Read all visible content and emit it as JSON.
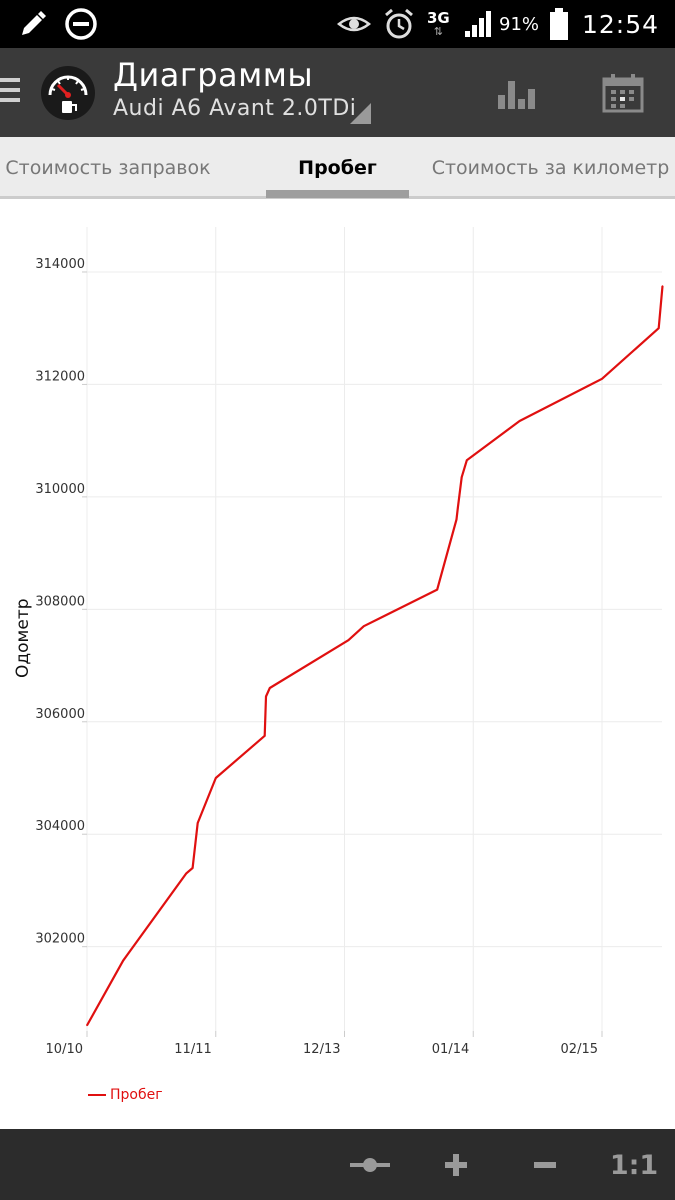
{
  "status_bar": {
    "battery": "91%",
    "time": "12:54",
    "network": "3G",
    "icons": [
      "pencil-icon",
      "do-not-disturb-icon",
      "eye-icon",
      "alarm-icon",
      "network-3g-icon",
      "signal-icon",
      "battery-icon"
    ]
  },
  "app_bar": {
    "title": "Диаграммы",
    "subtitle": "Audi A6 Avant 2.0TDi",
    "actions": [
      "bar-chart-icon",
      "calendar-icon"
    ]
  },
  "tabs": [
    {
      "label": "Стоимость заправок",
      "active": false
    },
    {
      "label": "Пробег",
      "active": true
    },
    {
      "label": "Стоимость за километр",
      "active": false
    }
  ],
  "bottom_bar": {
    "zoom_reset_label": "1:1",
    "icons": [
      "pan-slider-icon",
      "zoom-in-icon",
      "zoom-out-icon"
    ]
  },
  "chart_data": {
    "type": "line",
    "ylabel": "Одометр",
    "xlabel": "",
    "x_tick_labels": [
      "10/10",
      "11/11",
      "12/13",
      "01/14",
      "02/15"
    ],
    "y_tick_labels": [
      "302000",
      "304000",
      "306000",
      "308000",
      "310000",
      "312000",
      "314000"
    ],
    "ylim": [
      300500,
      314800
    ],
    "grid": true,
    "legend": "bottom-left",
    "colors": {
      "series": "#e01010",
      "grid": "#ececec",
      "axis_text": "#333333"
    },
    "series": [
      {
        "name": "Пробег",
        "x_tick_index": [
          0.0,
          0.28,
          0.77,
          0.82,
          0.86,
          1.0,
          1.38,
          1.39,
          1.42,
          2.03,
          2.15,
          2.72,
          2.87,
          2.88,
          2.91,
          2.95,
          3.36,
          4.0,
          4.44,
          4.47
        ],
        "values": [
          300600,
          301750,
          303300,
          303400,
          304200,
          305000,
          305750,
          306450,
          306600,
          307450,
          307700,
          308350,
          309600,
          309800,
          310350,
          310650,
          311350,
          312100,
          313000,
          313750
        ]
      }
    ]
  }
}
